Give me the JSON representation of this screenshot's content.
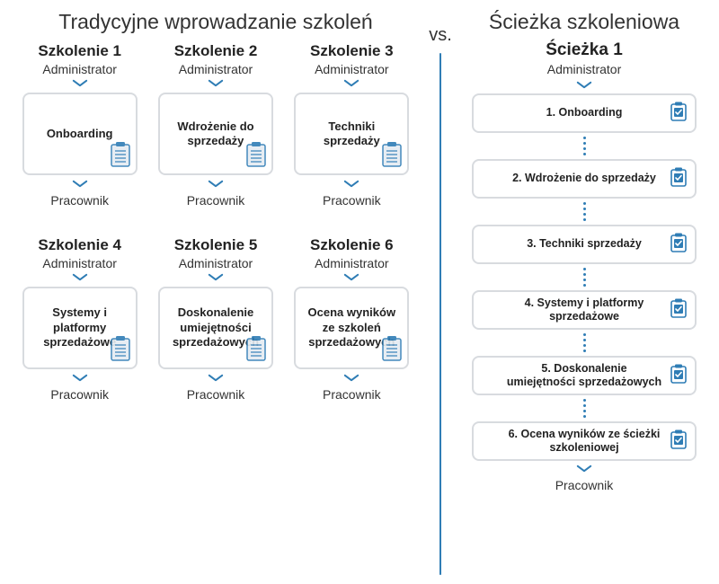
{
  "colors": {
    "accent": "#2f7db5",
    "border": "#d8dbdf",
    "text": "#2a2a2a"
  },
  "vs": "vs.",
  "left": {
    "title": "Tradycyjne wprowadzanie szkoleń",
    "roleTop": "Administrator",
    "roleBottom": "Pracownik",
    "trainings": [
      {
        "num": "Szkolenie 1",
        "content": "Onboarding"
      },
      {
        "num": "Szkolenie 2",
        "content": "Wdrożenie do sprzedaży"
      },
      {
        "num": "Szkolenie 3",
        "content": "Techniki sprzedaży"
      },
      {
        "num": "Szkolenie 4",
        "content": "Systemy i platformy sprzedażowe"
      },
      {
        "num": "Szkolenie 5",
        "content": "Doskonalenie umiejętności sprzedażowych"
      },
      {
        "num": "Szkolenie 6",
        "content": "Ocena wyników ze szkoleń sprzedażowych"
      }
    ]
  },
  "right": {
    "title": "Ścieżka szkoleniowa",
    "pathNum": "Ścieżka 1",
    "roleTop": "Administrator",
    "roleBottom": "Pracownik",
    "steps": [
      {
        "label": "1. Onboarding"
      },
      {
        "label": "2. Wdrożenie do sprzedaży"
      },
      {
        "label": "3. Techniki sprzedaży"
      },
      {
        "label": "4. Systemy i platformy sprzedażowe"
      },
      {
        "label": "5. Doskonalenie umiejętności sprzedażowych"
      },
      {
        "label": "6. Ocena wyników ze ścieżki szkoleniowej"
      }
    ]
  }
}
